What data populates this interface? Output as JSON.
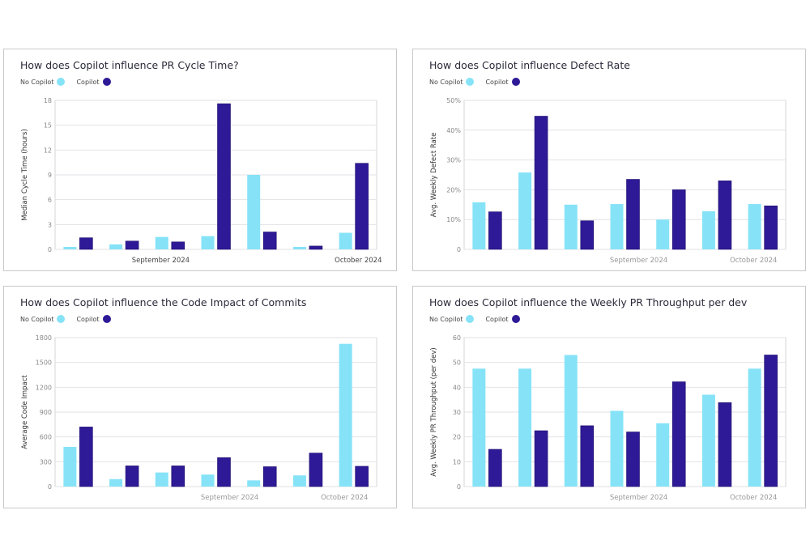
{
  "legend": {
    "no_copilot": "No Copilot",
    "copilot": "Copilot"
  },
  "colors": {
    "no_copilot": "#86e3f7",
    "copilot": "#2e1a96"
  },
  "chart_data": [
    {
      "type": "bar",
      "title": "How does Copilot influence PR Cycle Time?",
      "ylabel": "Median Cycle Time (hours)",
      "ylim": [
        0,
        18
      ],
      "yticks": [
        "0",
        "3",
        "6",
        "9",
        "12",
        "15",
        "18"
      ],
      "xticklabels": [
        "September 2024",
        "October 2024"
      ],
      "grid": true,
      "series": [
        {
          "name": "No Copilot",
          "values": [
            0.3,
            0.6,
            1.5,
            1.6,
            9.0,
            0.3,
            2.0
          ]
        },
        {
          "name": "Copilot",
          "values": [
            1.4,
            1.0,
            0.9,
            17.6,
            2.1,
            0.4,
            10.4
          ]
        }
      ]
    },
    {
      "type": "bar",
      "title": "How does Copilot influence Defect Rate",
      "ylabel": "Avg. Weekly Defect Rate",
      "ylim": [
        0,
        50
      ],
      "yticks": [
        "0",
        "10%",
        "20%",
        "30%",
        "40%",
        "50%"
      ],
      "xticklabels": [
        "September 2024",
        "October 2024"
      ],
      "grid": true,
      "series": [
        {
          "name": "No Copilot",
          "values": [
            15.8,
            25.8,
            15.0,
            15.2,
            10.0,
            12.8,
            15.2
          ]
        },
        {
          "name": "Copilot",
          "values": [
            12.6,
            44.7,
            9.6,
            23.5,
            20.0,
            23.0,
            14.6
          ]
        }
      ]
    },
    {
      "type": "bar",
      "title": "How does Copilot influence the Code Impact of Commits",
      "ylabel": "Average Code Impact",
      "ylim": [
        0,
        1800
      ],
      "yticks": [
        "0",
        "300",
        "600",
        "900",
        "1200",
        "1500",
        "1800"
      ],
      "xticklabels": [
        "September 2024",
        "October 2024"
      ],
      "grid": true,
      "series": [
        {
          "name": "No Copilot",
          "values": [
            480,
            90,
            170,
            145,
            75,
            135,
            1725
          ]
        },
        {
          "name": "Copilot",
          "values": [
            720,
            250,
            250,
            350,
            240,
            405,
            245
          ]
        }
      ]
    },
    {
      "type": "bar",
      "title": "How does Copilot influence the Weekly PR Throughput per dev",
      "ylabel": "Avg. Weekly PR Throughput (per dev)",
      "ylim": [
        0,
        60
      ],
      "yticks": [
        "0",
        "10",
        "20",
        "30",
        "40",
        "50",
        "60"
      ],
      "xticklabels": [
        "September 2024",
        "October 2024"
      ],
      "grid": true,
      "series": [
        {
          "name": "No Copilot",
          "values": [
            47.5,
            47.5,
            53,
            30.5,
            25.5,
            37,
            47.5
          ]
        },
        {
          "name": "Copilot",
          "values": [
            15,
            22.5,
            24.5,
            22,
            42.2,
            33.8,
            53
          ]
        }
      ]
    }
  ]
}
